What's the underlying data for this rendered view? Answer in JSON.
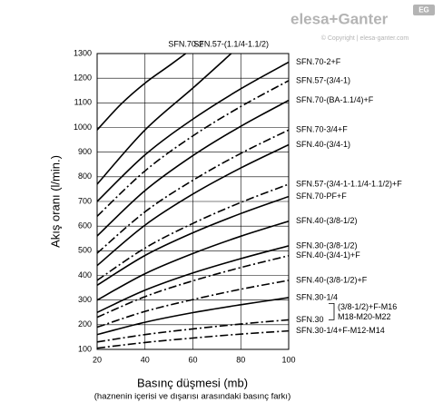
{
  "header": {
    "logo": "elesa+Ganter",
    "copyright": "© Copyright | elesa-ganter.com",
    "badge": "EG"
  },
  "chart_data": {
    "type": "line",
    "xlabel": "Basınç düşmesi (mb)",
    "xlabel_note": "(haznenin içerisi ve dışarısı arasındaki basınç farkı)",
    "ylabel": "Akış oranı (l/min.)",
    "xlim": [
      20,
      100
    ],
    "xticks": [
      20,
      40,
      60,
      80,
      100
    ],
    "ylim": [
      100,
      1300
    ],
    "yticks": [
      100,
      200,
      300,
      400,
      500,
      600,
      700,
      800,
      900,
      1000,
      1100,
      1200,
      1300
    ],
    "grid": true,
    "series": [
      {
        "name": "SFN.70-2",
        "color": "#000000",
        "style": "solid",
        "label_at": "top",
        "x": [
          20,
          30,
          40,
          50,
          57
        ],
        "values": [
          990,
          1095,
          1180,
          1250,
          1300
        ]
      },
      {
        "name": "SFN.57-(1.1/4-1.1/2)",
        "color": "#000000",
        "style": "solid",
        "label_at": "top",
        "x": [
          20,
          40,
          60,
          76
        ],
        "values": [
          770,
          990,
          1160,
          1300
        ]
      },
      {
        "name": "SFN.70-2+F",
        "color": "#000000",
        "style": "solid",
        "x": [
          20,
          40,
          60,
          80,
          100
        ],
        "values": [
          700,
          889,
          1034,
          1157,
          1265
        ]
      },
      {
        "name": "SFN.57-(3/4-1)",
        "color": "#000000",
        "style": "dashdot",
        "x": [
          20,
          40,
          60,
          80,
          100
        ],
        "values": [
          640,
          824,
          966,
          1085,
          1190
        ]
      },
      {
        "name": "SFN.70-(BA-1.1/4)+F",
        "color": "#000000",
        "style": "solid",
        "x": [
          20,
          40,
          60,
          80,
          100
        ],
        "values": [
          560,
          744,
          886,
          1005,
          1110
        ]
      },
      {
        "name": "SFN.70-3/4+F",
        "color": "#000000",
        "style": "dashdot",
        "x": [
          20,
          40,
          60,
          80,
          100
        ],
        "values": [
          490,
          658,
          786,
          895,
          990
        ]
      },
      {
        "name": "SFN.40-(3/4-1)",
        "color": "#000000",
        "style": "solid",
        "x": [
          20,
          40,
          60,
          80,
          100
        ],
        "values": [
          440,
          604,
          730,
          836,
          930
        ]
      },
      {
        "name": "SFN.57-(3/4-1-1.1/4-1.1/2)+F",
        "color": "#000000",
        "style": "dashdot",
        "x": [
          20,
          40,
          60,
          80,
          100
        ],
        "values": [
          380,
          511,
          611,
          696,
          770
        ]
      },
      {
        "name": "SFN.70-PF+F",
        "color": "#000000",
        "style": "solid",
        "x": [
          20,
          40,
          60,
          80,
          100
        ],
        "values": [
          360,
          481,
          573,
          651,
          720
        ]
      },
      {
        "name": "SFN.40-(3/8-1/2)",
        "color": "#000000",
        "style": "solid",
        "x": [
          20,
          40,
          60,
          80,
          100
        ],
        "values": [
          300,
          407,
          489,
          559,
          620
        ]
      },
      {
        "name": "SFN.30-(3/8-1/2)",
        "color": "#000000",
        "style": "solid",
        "x": [
          20,
          40,
          60,
          80,
          100
        ],
        "values": [
          250,
          340,
          410,
          468,
          520
        ]
      },
      {
        "name": "SFN.40-(3/4-1)+F",
        "color": "#000000",
        "style": "dashdot",
        "x": [
          20,
          40,
          60,
          80,
          100
        ],
        "values": [
          230,
          314,
          378,
          432,
          480
        ]
      },
      {
        "name": "SFN.40-(3/8-1/2)+F",
        "color": "#000000",
        "style": "dashdot",
        "x": [
          20,
          40,
          60,
          80,
          100
        ],
        "values": [
          190,
          254,
          302,
          344,
          380
        ]
      },
      {
        "name": "SFN.30-1/4",
        "color": "#000000",
        "style": "solid",
        "x": [
          20,
          40,
          60,
          80,
          100
        ],
        "values": [
          160,
          210,
          249,
          281,
          310
        ]
      },
      {
        "name": "SFN.30",
        "color": "#000000",
        "style": "dashdot",
        "note": [
          "(3/8-1/2)+F-M16",
          "M18-M20-M22"
        ],
        "x": [
          20,
          40,
          60,
          80,
          100
        ],
        "values": [
          130,
          160,
          183,
          203,
          220
        ]
      },
      {
        "name": "SFN.30-1/4+F-M12-M14",
        "color": "#000000",
        "style": "dashdot",
        "x": [
          20,
          40,
          60,
          80,
          100
        ],
        "values": [
          105,
          128,
          146,
          162,
          175
        ]
      }
    ]
  }
}
